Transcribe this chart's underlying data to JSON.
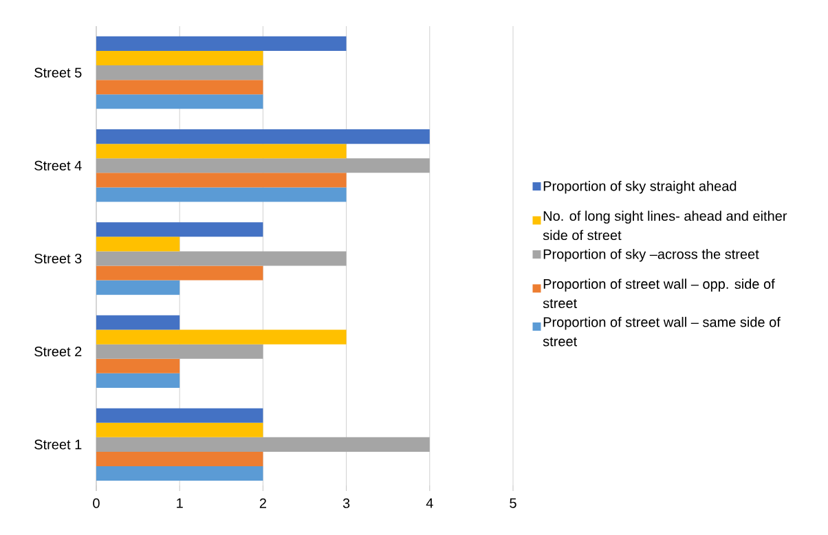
{
  "chart_data": {
    "type": "bar",
    "orientation": "horizontal",
    "categories": [
      "Street 5",
      "Street 4",
      "Street 3",
      "Street 2",
      "Street 1"
    ],
    "series": [
      {
        "name": "Proportion of street wall – same side of street",
        "color": "#5b9bd5",
        "values": [
          2,
          3,
          1,
          1,
          2
        ]
      },
      {
        "name": "Proportion of street wall – opp. side of street",
        "color": "#ed7d31",
        "values": [
          2,
          3,
          2,
          1,
          2
        ]
      },
      {
        "name": "Proportion of sky –across the street",
        "color": "#a5a5a5",
        "values": [
          2,
          4,
          3,
          2,
          4
        ]
      },
      {
        "name": "No. of long sight lines- ahead and either side of street",
        "color": "#ffc000",
        "values": [
          2,
          3,
          1,
          3,
          2
        ]
      },
      {
        "name": "Proportion of sky straight ahead",
        "color": "#4472c4",
        "values": [
          3,
          4,
          2,
          1,
          2
        ]
      }
    ],
    "xlim": [
      0,
      5
    ],
    "xticks": [
      0,
      1,
      2,
      3,
      4,
      5
    ],
    "grid": "x",
    "legend": "right"
  }
}
